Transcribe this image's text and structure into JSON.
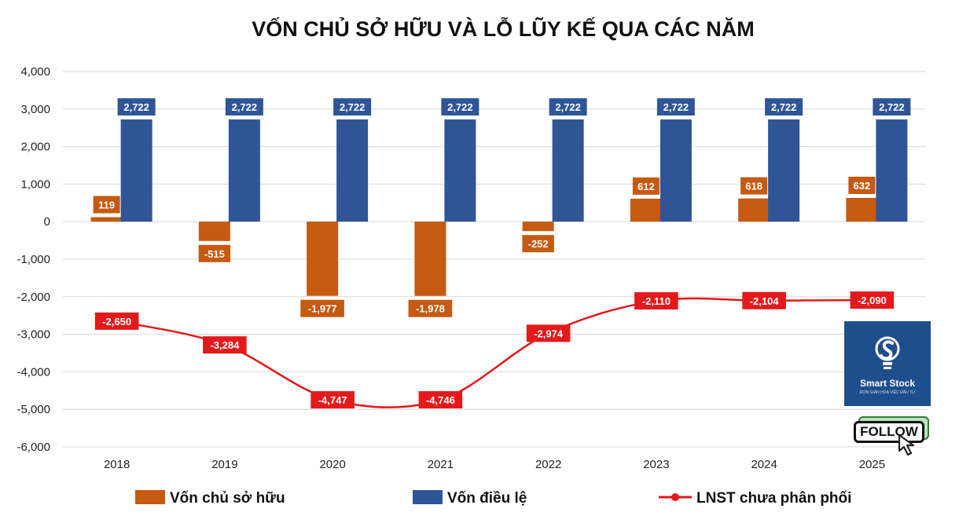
{
  "chart_data": {
    "type": "bar",
    "title": "VỐN CHỦ SỞ HỮU VÀ LỖ LŨY KẾ QUA CÁC NĂM",
    "categories": [
      "2018",
      "2019",
      "2020",
      "2021",
      "2022",
      "2023",
      "2024",
      "2025"
    ],
    "series": [
      {
        "name": "Vốn chủ sở hữu",
        "type": "bar",
        "color": "#c55a11",
        "values": [
          119,
          -515,
          -1977,
          -1978,
          -252,
          612,
          618,
          632
        ],
        "labels": [
          "119",
          "-515",
          "-1,977",
          "-1,978",
          "-252",
          "612",
          "618",
          "632"
        ]
      },
      {
        "name": "Vốn điều lệ",
        "type": "bar",
        "color": "#2f5597",
        "values": [
          2722,
          2722,
          2722,
          2722,
          2722,
          2722,
          2722,
          2722
        ],
        "labels": [
          "2,722",
          "2,722",
          "2,722",
          "2,722",
          "2,722",
          "2,722",
          "2,722",
          "2,722"
        ]
      },
      {
        "name": "LNST chưa phân phối",
        "type": "line",
        "color": "#e3191b",
        "values": [
          -2650,
          -3284,
          -4747,
          -4746,
          -2974,
          -2110,
          -2104,
          -2090
        ],
        "labels": [
          "-2,650",
          "-3,284",
          "-4,747",
          "-4,746",
          "-2,974",
          "-2,110",
          "-2,104",
          "-2,090"
        ]
      }
    ],
    "yticks": [
      4000,
      3000,
      2000,
      1000,
      0,
      -1000,
      -2000,
      -3000,
      -4000,
      -5000,
      -6000
    ],
    "ytick_labels": [
      "4,000",
      "3,000",
      "2,000",
      "1,000",
      "0",
      "-1,000",
      "-2,000",
      "-3,000",
      "-4,000",
      "-5,000",
      "-6,000"
    ],
    "ylim": [
      -6000,
      4000
    ],
    "grid": true,
    "legend_position": "bottom"
  },
  "logo": {
    "name": "Smart Stock",
    "tagline": "ĐƠN GIẢN HÓA VIỆC ĐẦU TƯ",
    "bg_color": "#1f4e8c"
  },
  "follow_button": {
    "label": "FOLLOW"
  }
}
